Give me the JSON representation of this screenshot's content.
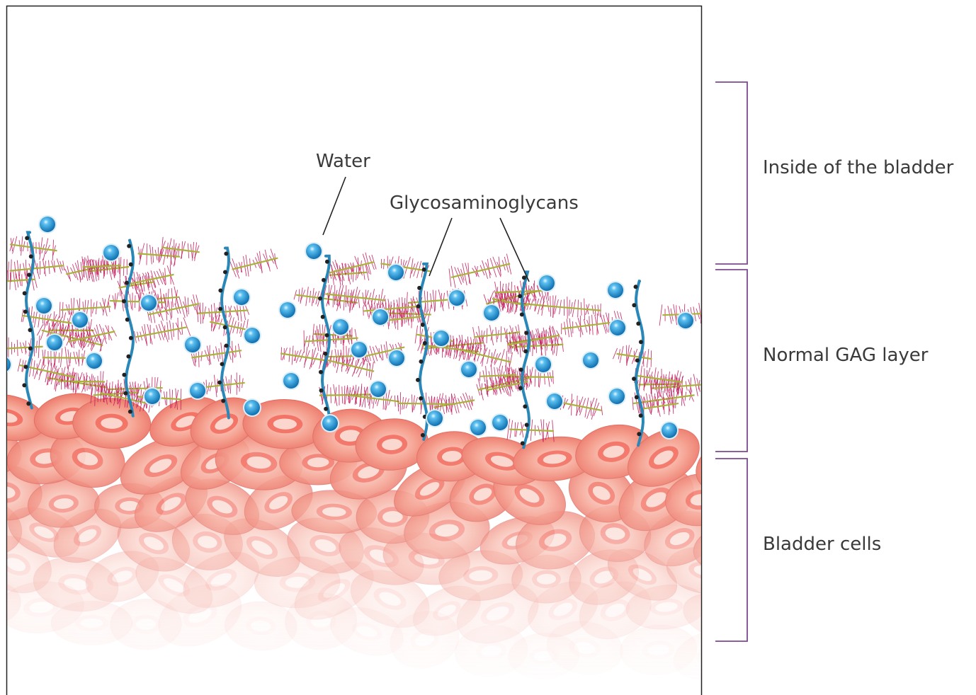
{
  "labels": {
    "water": "Water",
    "gags": "Glycosaminoglycans"
  },
  "regions": {
    "inside": "Inside of the bladder",
    "gag_layer": "Normal GAG layer",
    "cells": "Bladder cells"
  },
  "colors": {
    "bracket": "#7b4a8f",
    "frame": "#222222",
    "water_drop": "#1e90d0",
    "gag_stem": "#2a88b8",
    "fiber": "#c2185b",
    "strand": "#a7b33a",
    "cell_fill": "#f08070",
    "cell_nucleus": "#f8c8bc"
  }
}
